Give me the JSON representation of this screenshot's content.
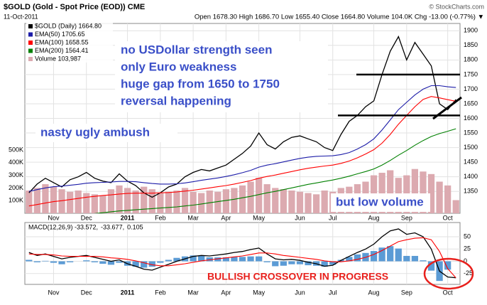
{
  "header": {
    "title": "$GOLD (Gold - Spot Price (EOD)) CME",
    "date": "11-Oct-2011",
    "quote": "Open 1678.30 High 1686.70 Low 1655.40 Close 1664.80 Volume 104.0K Chg -13.00 (-0.77%) ▼",
    "credit": "© StockCharts.com"
  },
  "chart_data": [
    {
      "type": "line",
      "categories": [
        null,
        null,
        null,
        "Nov",
        null,
        null,
        null,
        "Dec",
        null,
        null,
        null,
        null,
        "2011",
        null,
        null,
        null,
        "Feb",
        null,
        null,
        null,
        "Mar",
        null,
        null,
        null,
        "Apr",
        null,
        null,
        null,
        "May",
        null,
        null,
        null,
        null,
        "Jun",
        null,
        null,
        null,
        "Jul",
        null,
        null,
        null,
        null,
        "Aug",
        null,
        null,
        null,
        "Sep",
        null,
        null,
        null,
        null,
        "Oct",
        null
      ],
      "series": [
        {
          "name": "$GOLD (Daily) 1664.80",
          "color": "#000000",
          "values": [
            1345,
            1375,
            1395,
            1380,
            1365,
            1390,
            1400,
            1415,
            1395,
            1385,
            1380,
            1410,
            1385,
            1370,
            1345,
            1330,
            1345,
            1365,
            1375,
            1400,
            1415,
            1425,
            1420,
            1430,
            1440,
            1460,
            1480,
            1505,
            1550,
            1510,
            1495,
            1520,
            1535,
            1540,
            1530,
            1520,
            1500,
            1490,
            1545,
            1590,
            1610,
            1640,
            1660,
            1750,
            1830,
            1880,
            1800,
            1860,
            1820,
            1780,
            1650,
            1630,
            1664.8
          ]
        },
        {
          "name": "EMA(50) 1705.65",
          "color": "#1c1ca8",
          "values": [
            1350,
            1356,
            1362,
            1366,
            1368,
            1371,
            1374,
            1378,
            1380,
            1381,
            1382,
            1384,
            1384,
            1383,
            1380,
            1377,
            1375,
            1375,
            1376,
            1379,
            1383,
            1388,
            1392,
            1396,
            1401,
            1407,
            1414,
            1422,
            1433,
            1440,
            1445,
            1451,
            1457,
            1463,
            1467,
            1470,
            1471,
            1472,
            1476,
            1483,
            1495,
            1510,
            1530,
            1560,
            1595,
            1630,
            1655,
            1680,
            1700,
            1712,
            1712,
            1708,
            1705.65
          ]
        },
        {
          "name": "EMA(100) 1658.55",
          "color": "#ff0000",
          "values": [
            1300,
            1305,
            1310,
            1315,
            1318,
            1322,
            1326,
            1330,
            1333,
            1336,
            1338,
            1341,
            1343,
            1344,
            1344,
            1344,
            1345,
            1346,
            1348,
            1351,
            1354,
            1358,
            1362,
            1366,
            1370,
            1375,
            1381,
            1387,
            1395,
            1401,
            1406,
            1412,
            1418,
            1424,
            1429,
            1433,
            1437,
            1440,
            1446,
            1454,
            1465,
            1478,
            1493,
            1515,
            1545,
            1580,
            1610,
            1640,
            1665,
            1675,
            1670,
            1664,
            1658.55
          ]
        },
        {
          "name": "EMA(200) 1564.41",
          "color": "#008000",
          "values": [
            1250,
            1253,
            1256,
            1259,
            1262,
            1265,
            1268,
            1271,
            1274,
            1277,
            1280,
            1283,
            1285,
            1287,
            1289,
            1291,
            1293,
            1295,
            1297,
            1300,
            1303,
            1307,
            1311,
            1315,
            1319,
            1323,
            1328,
            1333,
            1339,
            1345,
            1350,
            1356,
            1362,
            1368,
            1374,
            1379,
            1384,
            1389,
            1395,
            1402,
            1410,
            1418,
            1427,
            1440,
            1456,
            1474,
            1490,
            1508,
            1524,
            1538,
            1548,
            1556,
            1564.41
          ]
        },
        {
          "name": "Volume 103,987",
          "color": "#dcaab0",
          "type": "bar",
          "axis": "y2",
          "values": [
            180000,
            200000,
            230000,
            210000,
            190000,
            170000,
            180000,
            160000,
            150000,
            140000,
            190000,
            220000,
            200000,
            180000,
            210000,
            190000,
            160000,
            170000,
            180000,
            200000,
            170000,
            160000,
            180000,
            170000,
            190000,
            200000,
            220000,
            250000,
            280000,
            230000,
            200000,
            190000,
            180000,
            170000,
            160000,
            150000,
            180000,
            170000,
            200000,
            210000,
            230000,
            250000,
            300000,
            320000,
            340000,
            280000,
            300000,
            350000,
            330000,
            310000,
            250000,
            220000,
            103987
          ]
        }
      ],
      "ylim": [
        1275,
        1925
      ],
      "yticks": [
        1350,
        1400,
        1450,
        1500,
        1550,
        1600,
        1650,
        1700,
        1750,
        1800,
        1850,
        1900
      ],
      "y2lim": [
        0,
        1500000
      ],
      "y2ticks": [
        {
          "value": 100000,
          "label": "100K"
        },
        {
          "value": 200000,
          "label": "200K"
        },
        {
          "value": 300000,
          "label": "300K"
        },
        {
          "value": 400000,
          "label": "400K"
        },
        {
          "value": 500000,
          "label": "500K"
        }
      ],
      "hlines": [
        1750,
        1610
      ],
      "grid": true,
      "annotations": [
        "no USDollar strength seen",
        "only Euro weakness",
        "huge gap from 1650 to 1750",
        "reversal happening",
        "nasty ugly ambush",
        "but low volume"
      ]
    },
    {
      "type": "line",
      "categories": [
        null,
        null,
        null,
        "Nov",
        null,
        null,
        null,
        "Dec",
        null,
        null,
        null,
        null,
        "2011",
        null,
        null,
        null,
        "Feb",
        null,
        null,
        null,
        "Mar",
        null,
        null,
        null,
        "Apr",
        null,
        null,
        null,
        "May",
        null,
        null,
        null,
        null,
        "Jun",
        null,
        null,
        null,
        "Jul",
        null,
        null,
        null,
        null,
        "Aug",
        null,
        null,
        null,
        "Sep",
        null,
        null,
        null,
        null,
        "Oct",
        null
      ],
      "series": [
        {
          "name": "MACD(12,26,9) -33.572,",
          "color": "#000000",
          "values": [
            18,
            12,
            15,
            10,
            5,
            8,
            10,
            12,
            8,
            4,
            0,
            3,
            -5,
            -10,
            -16,
            -18,
            -12,
            -6,
            0,
            5,
            10,
            12,
            11,
            13,
            15,
            18,
            20,
            24,
            27,
            15,
            5,
            3,
            4,
            2,
            -2,
            -5,
            -10,
            -8,
            2,
            10,
            18,
            25,
            35,
            50,
            62,
            66,
            55,
            58,
            50,
            25,
            -20,
            -32,
            -33.572
          ]
        },
        {
          "name": "-33.677,",
          "color": "#ff0000",
          "values": [
            15,
            14,
            14,
            13,
            11,
            10,
            10,
            10,
            10,
            9,
            7,
            6,
            4,
            1,
            -3,
            -7,
            -9,
            -9,
            -7,
            -5,
            -2,
            1,
            3,
            5,
            7,
            9,
            11,
            14,
            17,
            17,
            15,
            12,
            10,
            8,
            6,
            4,
            1,
            -1,
            -1,
            1,
            4,
            8,
            14,
            22,
            31,
            40,
            44,
            47,
            48,
            44,
            20,
            -15,
            -33.677
          ]
        },
        {
          "name": "0.105",
          "color": "#5b9bd5",
          "type": "bar",
          "values": [
            3,
            -2,
            1,
            -3,
            -6,
            -2,
            0,
            2,
            -2,
            -5,
            -7,
            -3,
            -9,
            -11,
            -13,
            -11,
            -3,
            3,
            7,
            10,
            12,
            11,
            8,
            8,
            8,
            9,
            9,
            10,
            10,
            -2,
            -10,
            -9,
            -6,
            -6,
            -8,
            -9,
            -11,
            -7,
            3,
            9,
            14,
            17,
            21,
            28,
            31,
            26,
            11,
            11,
            2,
            -19,
            -40,
            -17,
            0.105
          ]
        }
      ],
      "ylim": [
        -47,
        79
      ],
      "yticks": [
        50,
        25,
        0,
        -25
      ],
      "grid": true,
      "annotations": [
        "BULLISH CROSSOVER IN PROGRESS"
      ]
    }
  ]
}
